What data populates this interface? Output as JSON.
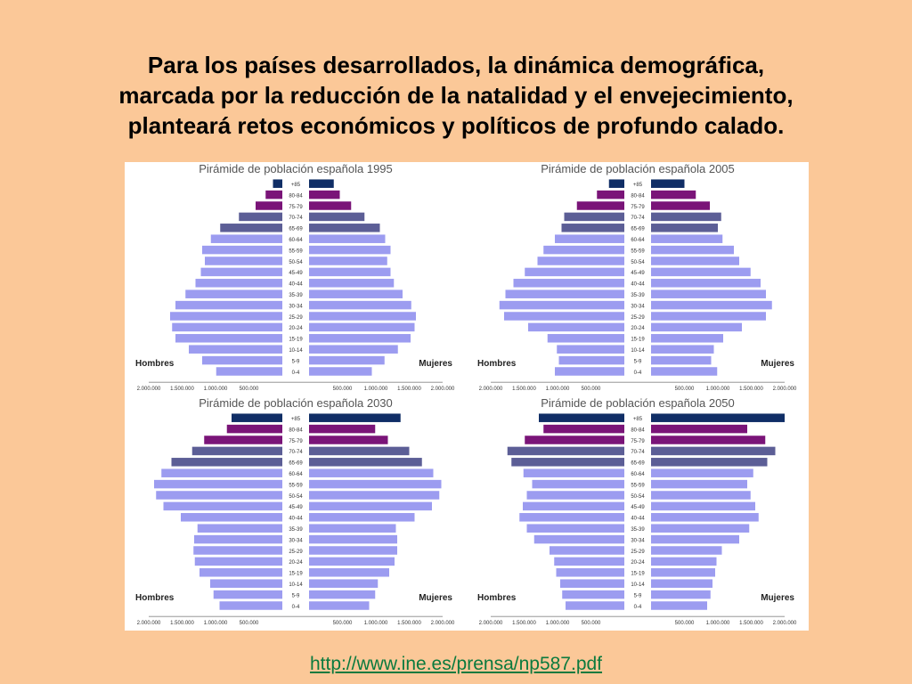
{
  "slide": {
    "title_lines": [
      "Para los países desarrollados, la dinámica demográfica,",
      "marcada por la reducción de la natalidad y el envejecimiento,",
      "planteará retos económicos y políticos de profundo calado."
    ],
    "source_link": "http://www.ine.es/prensa/np587.pdf"
  },
  "colors": {
    "young": "#9c9cf0",
    "age_65_74": "#5c5e96",
    "age_75_84": "#7a1478",
    "age_85_plus": "#102e66"
  },
  "chart_data": [
    {
      "type": "bar",
      "title": "Pirámide de población española 1995",
      "categories": [
        "0-4",
        "5-9",
        "10-14",
        "15-19",
        "20-24",
        "25-29",
        "30-34",
        "35-39",
        "40-44",
        "45-49",
        "50-54",
        "55-59",
        "60-64",
        "65-69",
        "70-74",
        "75-79",
        "80-84",
        "+85"
      ],
      "series": [
        {
          "name": "Hombres",
          "values": [
            990000,
            1200000,
            1400000,
            1600000,
            1650000,
            1680000,
            1600000,
            1450000,
            1300000,
            1220000,
            1160000,
            1200000,
            1070000,
            930000,
            650000,
            400000,
            250000,
            140000
          ]
        },
        {
          "name": "Mujeres",
          "values": [
            940000,
            1130000,
            1330000,
            1520000,
            1580000,
            1600000,
            1530000,
            1400000,
            1270000,
            1220000,
            1170000,
            1220000,
            1140000,
            1060000,
            830000,
            630000,
            460000,
            370000
          ]
        }
      ],
      "xticks": [
        "2.000.000",
        "1.500.000",
        "1.000.000",
        "500.000",
        "500.000",
        "1.000.000",
        "1.500.000",
        "2.000.000"
      ],
      "xlim": [
        -2000000,
        2000000
      ],
      "left_label": "Hombres",
      "right_label": "Mujeres"
    },
    {
      "type": "bar",
      "title": "Pirámide de población española 2005",
      "categories": [
        "0-4",
        "5-9",
        "10-14",
        "15-19",
        "20-24",
        "25-29",
        "30-34",
        "35-39",
        "40-44",
        "45-49",
        "50-54",
        "55-59",
        "60-64",
        "65-69",
        "70-74",
        "75-79",
        "80-84",
        "+85"
      ],
      "series": [
        {
          "name": "Hombres",
          "values": [
            1040000,
            980000,
            1010000,
            1150000,
            1440000,
            1800000,
            1870000,
            1780000,
            1660000,
            1490000,
            1300000,
            1210000,
            1040000,
            940000,
            900000,
            710000,
            410000,
            230000
          ]
        },
        {
          "name": "Mujeres",
          "values": [
            990000,
            900000,
            940000,
            1080000,
            1360000,
            1720000,
            1810000,
            1720000,
            1640000,
            1490000,
            1320000,
            1240000,
            1070000,
            1000000,
            1050000,
            880000,
            670000,
            500000
          ]
        }
      ],
      "xticks": [
        "2.000.000",
        "1.500.000",
        "1.000.000",
        "500.000",
        "500.000",
        "1.000.000",
        "1.500.000",
        "2.000.000"
      ],
      "xlim": [
        -2000000,
        2000000
      ],
      "left_label": "Hombres",
      "right_label": "Mujeres"
    },
    {
      "type": "bar",
      "title": "Pirámide de población española 2030",
      "categories": [
        "0-4",
        "5-9",
        "10-14",
        "15-19",
        "20-24",
        "25-29",
        "30-34",
        "35-39",
        "40-44",
        "45-49",
        "50-54",
        "55-59",
        "60-64",
        "65-69",
        "70-74",
        "75-79",
        "80-84",
        "+85"
      ],
      "series": [
        {
          "name": "Hombres",
          "values": [
            940000,
            1030000,
            1080000,
            1240000,
            1310000,
            1330000,
            1320000,
            1270000,
            1520000,
            1780000,
            1890000,
            1920000,
            1810000,
            1660000,
            1350000,
            1170000,
            830000,
            760000
          ]
        },
        {
          "name": "Mujeres",
          "values": [
            900000,
            990000,
            1030000,
            1200000,
            1280000,
            1320000,
            1320000,
            1300000,
            1580000,
            1840000,
            1950000,
            1980000,
            1860000,
            1690000,
            1500000,
            1180000,
            990000,
            1370000
          ]
        }
      ],
      "xticks": [
        "2.000.000",
        "1.500.000",
        "1.000.000",
        "500.000",
        "500.000",
        "1.000.000",
        "1.500.000",
        "2.000.000"
      ],
      "xlim": [
        -2000000,
        2000000
      ],
      "left_label": "Hombres",
      "right_label": "Mujeres"
    },
    {
      "type": "bar",
      "title": "Pirámide de población española 2050",
      "categories": [
        "0-4",
        "5-9",
        "10-14",
        "15-19",
        "20-24",
        "25-29",
        "30-34",
        "35-39",
        "40-44",
        "45-49",
        "50-54",
        "55-59",
        "60-64",
        "65-69",
        "70-74",
        "75-79",
        "80-84",
        "+85"
      ],
      "series": [
        {
          "name": "Hombres",
          "values": [
            880000,
            930000,
            960000,
            1020000,
            1050000,
            1120000,
            1350000,
            1460000,
            1570000,
            1520000,
            1460000,
            1380000,
            1510000,
            1690000,
            1750000,
            1490000,
            1210000,
            1280000
          ]
        },
        {
          "name": "Mujeres",
          "values": [
            840000,
            890000,
            920000,
            960000,
            980000,
            1060000,
            1320000,
            1470000,
            1610000,
            1560000,
            1490000,
            1440000,
            1530000,
            1740000,
            1860000,
            1710000,
            1440000,
            2000000
          ]
        }
      ],
      "xticks": [
        "2.000.000",
        "1.500.000",
        "1.000.000",
        "500.000",
        "500.000",
        "1.000.000",
        "1.500.000",
        "2.000.000"
      ],
      "xlim": [
        -2000000,
        2000000
      ],
      "left_label": "Hombres",
      "right_label": "Mujeres"
    }
  ]
}
